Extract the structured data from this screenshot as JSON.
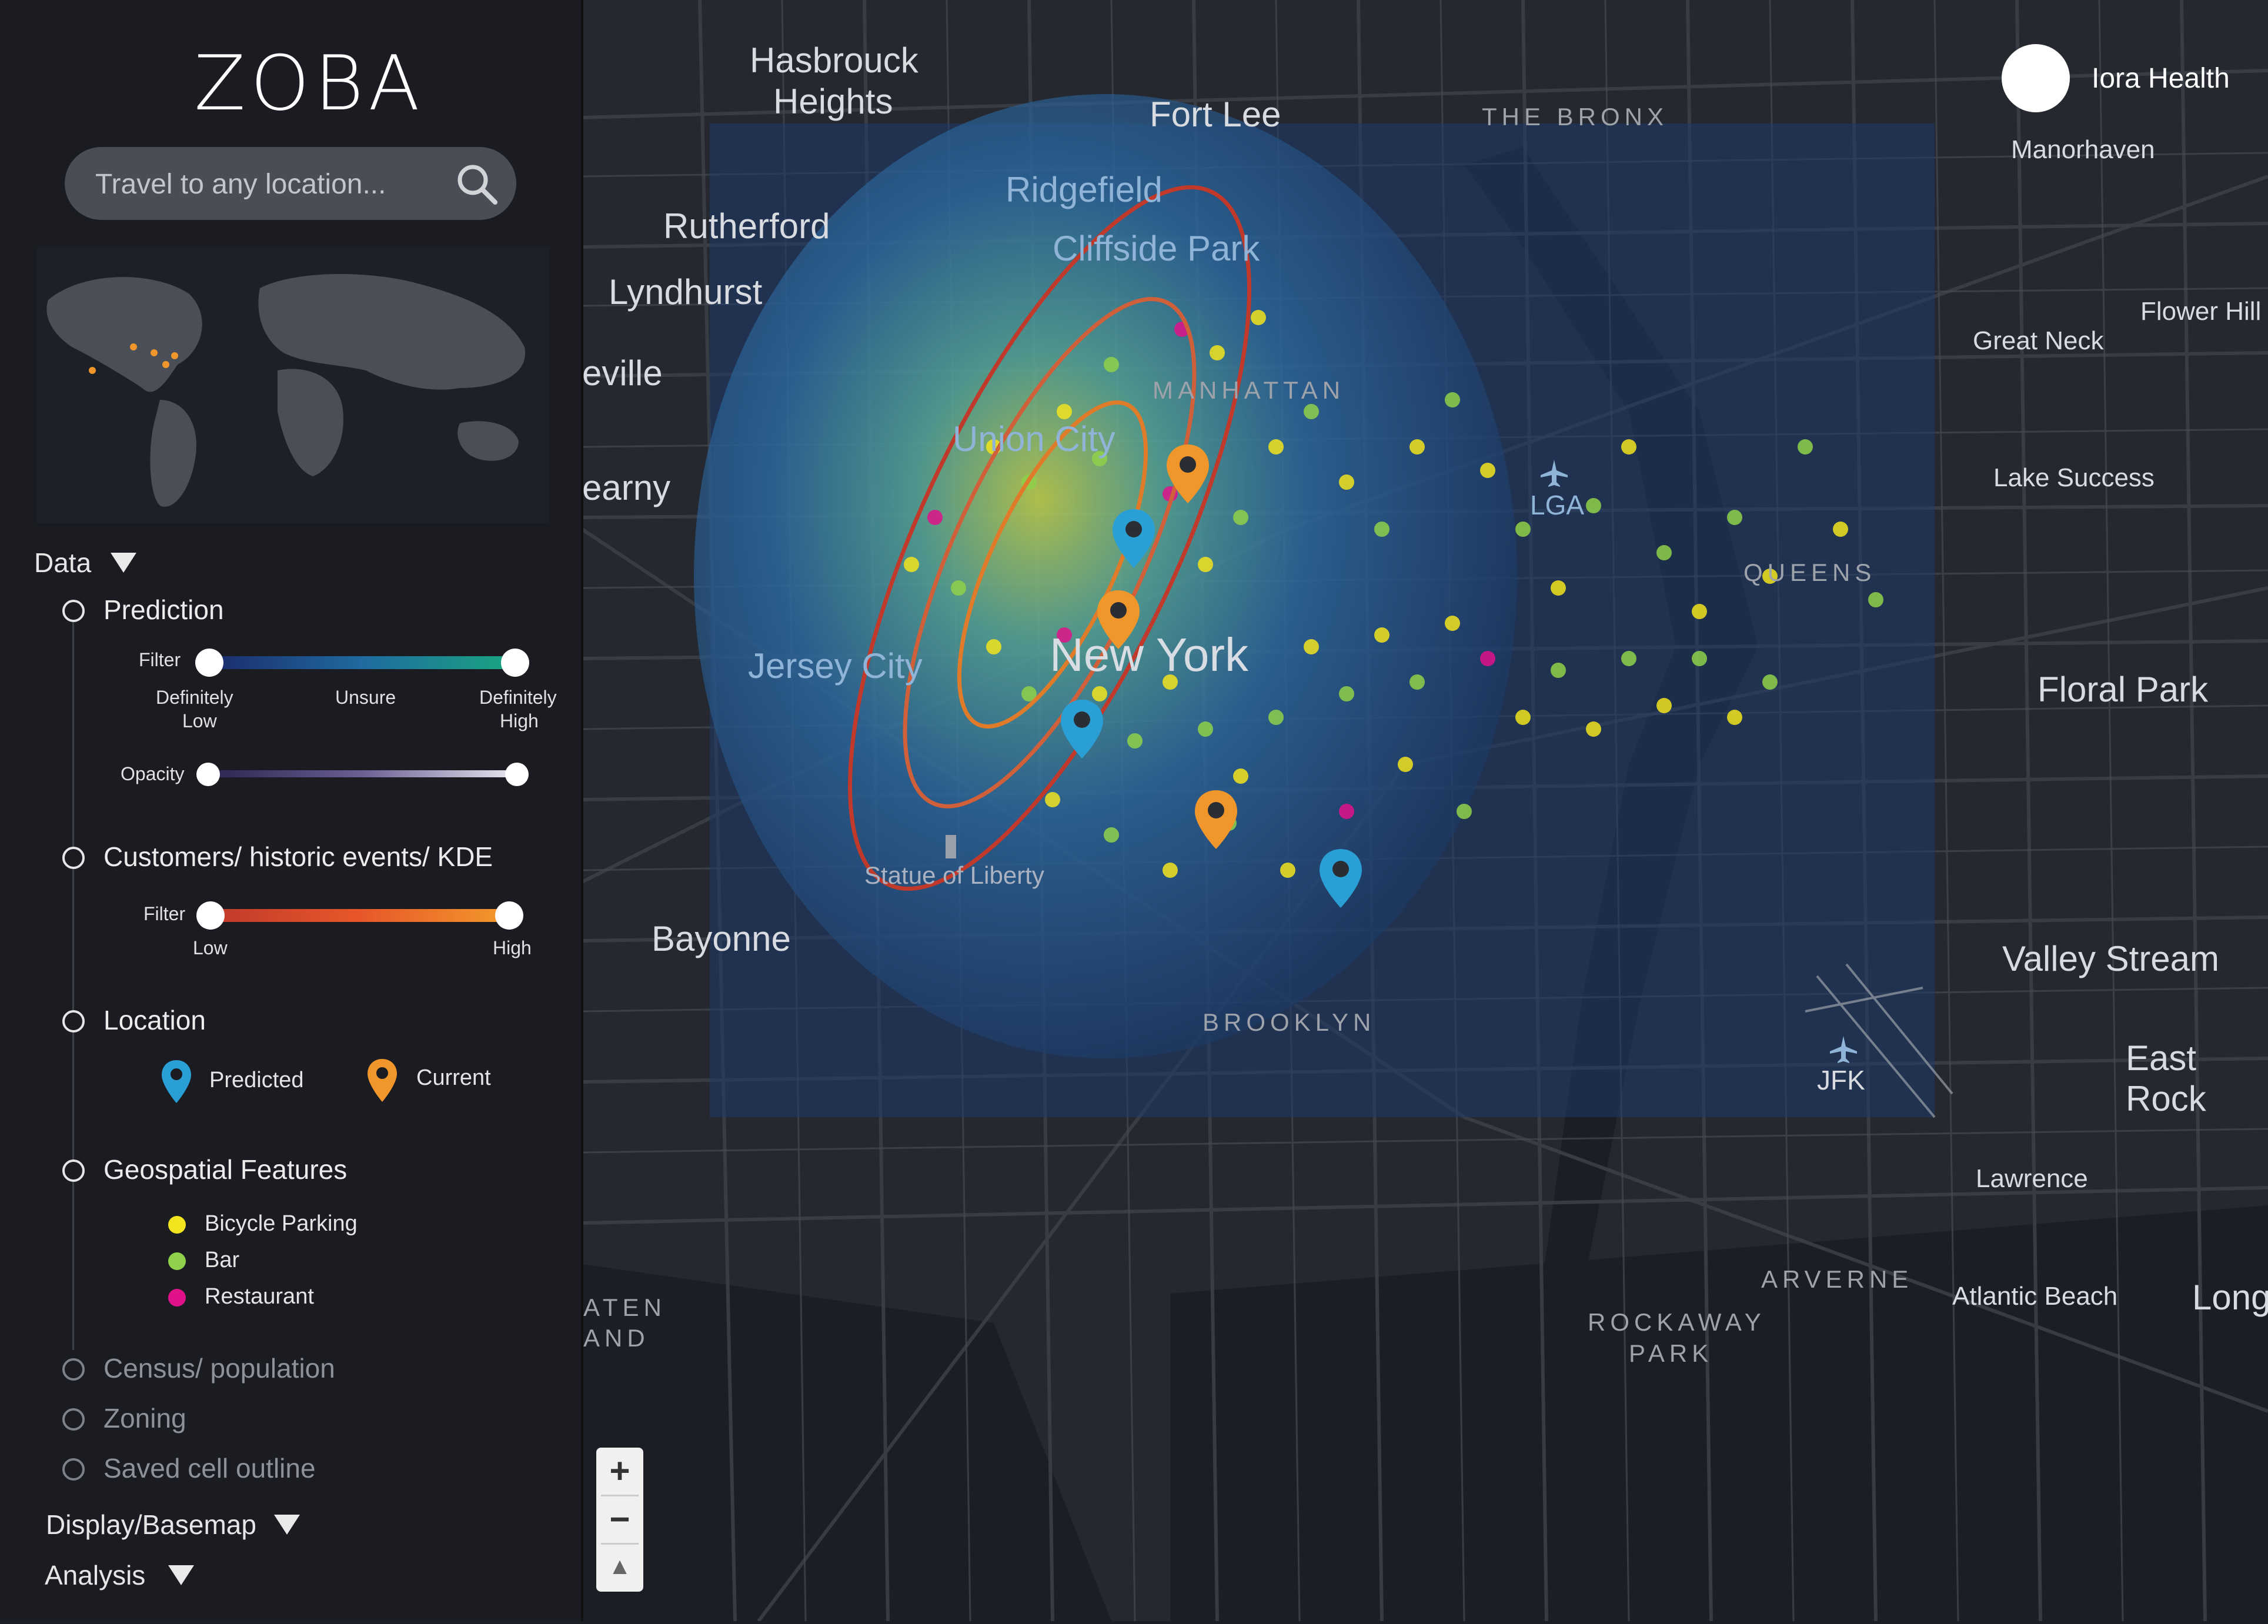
{
  "app": {
    "logo": "ZOBA",
    "user": "Iora Health"
  },
  "search": {
    "placeholder": "Travel to any location..."
  },
  "sidebar": {
    "data_section": "Data",
    "prediction": {
      "title": "Prediction",
      "filter_label": "Filter",
      "low_label_1": "Definitely",
      "low_label_2": "Low",
      "mid_label": "Unsure",
      "high_label_1": "Definitely",
      "high_label_2": "High",
      "opacity_label": "Opacity"
    },
    "customers": {
      "title": "Customers/ historic events/ KDE",
      "filter_label": "Filter",
      "low_label": "Low",
      "high_label": "High"
    },
    "location": {
      "title": "Location",
      "predicted_label": "Predicted",
      "current_label": "Current"
    },
    "geospatial": {
      "title": "Geospatial Features",
      "items": [
        {
          "label": "Bicycle Parking",
          "color": "#f2e41e"
        },
        {
          "label": "Bar",
          "color": "#8fd14a"
        },
        {
          "label": "Restaurant",
          "color": "#e0128a"
        }
      ]
    },
    "census": "Census/ population",
    "zoning": "Zoning",
    "saved": "Saved cell outline",
    "display_section": "Display/Basemap",
    "analysis_section": "Analysis"
  },
  "map_labels": {
    "hasbrouck_1": "Hasbrouck",
    "hasbrouck_2": "Heights",
    "fort_lee": "Fort Lee",
    "the_bronx": "THE BRONX",
    "manorhaven": "Manorhaven",
    "ridgefield": "Ridgefield",
    "cliffside": "Cliffside Park",
    "rutherford": "Rutherford",
    "lyndhurst": "Lyndhurst",
    "eville": "eville",
    "earny": "earny",
    "manhattan": "MANHATTAN",
    "union_city": "Union City",
    "lga": "LGA",
    "great_neck": "Great Neck",
    "flower_hill": "Flower Hill",
    "lake_success": "Lake Success",
    "queens": "QUEENS",
    "jersey_city": "Jersey City",
    "new_york": "New York",
    "floral_park": "Floral Park",
    "statue": "Statue of Liberty",
    "bayonne": "Bayonne",
    "valley_stream": "Valley Stream",
    "brooklyn": "BROOKLYN",
    "east_rock": "East Rock",
    "jfk": "JFK",
    "lawrence": "Lawrence",
    "arverne": "ARVERNE",
    "atlantic_beach": "Atlantic Beach",
    "long": "Long",
    "rockaway_1": "ROCKAWAY",
    "rockaway_2": "PARK",
    "staten_1": "ATEN",
    "staten_2": "AND"
  },
  "zoom": {
    "in": "+",
    "out": "−",
    "compass": "▲"
  },
  "colors": {
    "predicted_pin": "#2a9fd6",
    "current_pin": "#f0962a",
    "ellipse": "#c0392b",
    "ellipse_inner": "#e07b2a"
  }
}
